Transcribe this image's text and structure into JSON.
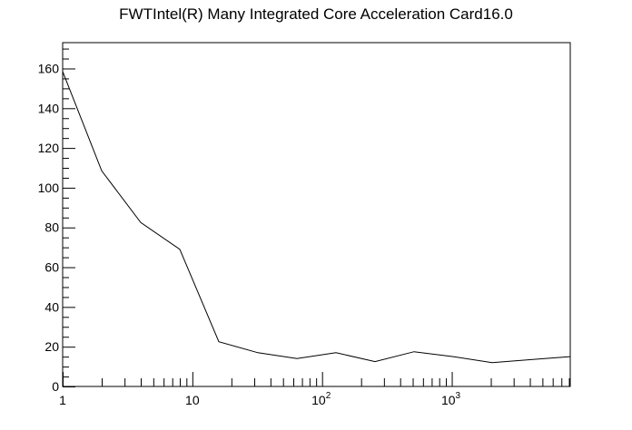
{
  "chart_data": {
    "type": "line",
    "title": "FWTIntel(R) Many Integrated Core Acceleration Card16.0",
    "xlabel": "",
    "ylabel": "",
    "xscale": "log",
    "xlim": [
      1,
      8192
    ],
    "ylim": [
      0,
      173
    ],
    "grid": false,
    "legend": "none",
    "line_color": "#000000",
    "x_ticks": [
      {
        "value": 1,
        "label": "1"
      },
      {
        "value": 10,
        "label": "10"
      },
      {
        "value": 100,
        "base": "10",
        "exp": "2"
      },
      {
        "value": 1000,
        "base": "10",
        "exp": "3"
      }
    ],
    "y_ticks": [
      0,
      20,
      40,
      60,
      80,
      100,
      120,
      140,
      160
    ],
    "series": [
      {
        "x": [
          1,
          2,
          4,
          8,
          16,
          32,
          64,
          128,
          256,
          512,
          1024,
          2048,
          4096,
          8192
        ],
        "values": [
          158.5,
          108.5,
          82.5,
          69,
          22.5,
          17,
          14,
          17,
          12.5,
          17.5,
          15,
          12,
          13.5,
          15
        ]
      }
    ]
  }
}
